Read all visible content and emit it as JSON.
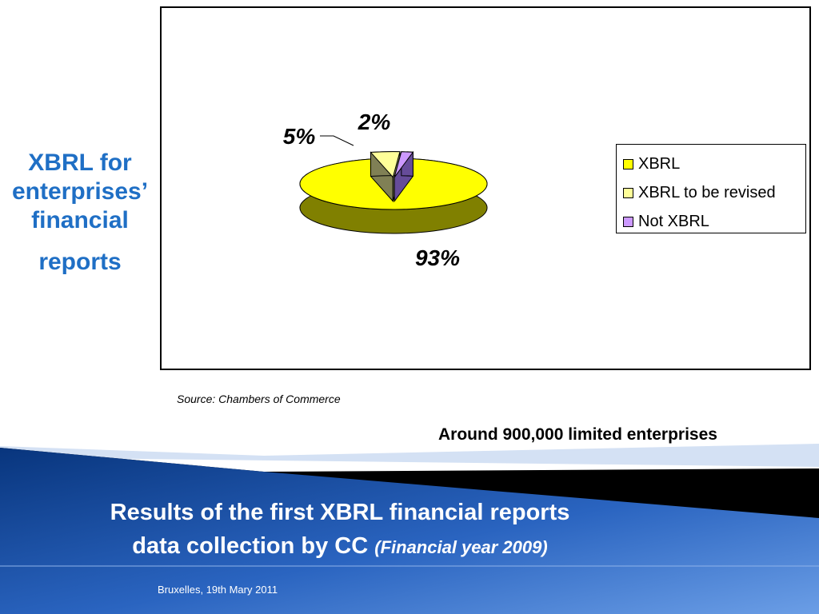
{
  "slide": {
    "side_title_lines": [
      "XBRL for",
      "enterprises’",
      "financial",
      "reports"
    ],
    "source_note": "Source: Chambers of Commerce",
    "enterprises_note": "Around 900,000 limited enterprises",
    "footer_title_line1": "Results of the first XBRL financial reports",
    "footer_title_line2": "data collection by CC",
    "footer_title_suffix": "(Financial year 2009)",
    "footer_date": "Bruxelles, 19th Mary  2011"
  },
  "colors": {
    "accent_blue": "#1f6fc5",
    "banner_dark": "#0a3f8f",
    "banner_light": "#4a86d8"
  },
  "chart_data": {
    "type": "pie",
    "style": "3d-exploded",
    "categories": [
      "XBRL",
      "XBRL to be revised",
      "Not XBRL"
    ],
    "values": [
      93,
      5,
      2
    ],
    "data_labels": [
      "93%",
      "5%",
      "2%"
    ],
    "colors": [
      "#ffff00",
      "#ffff99",
      "#cc99ff"
    ],
    "legend_position": "right"
  }
}
